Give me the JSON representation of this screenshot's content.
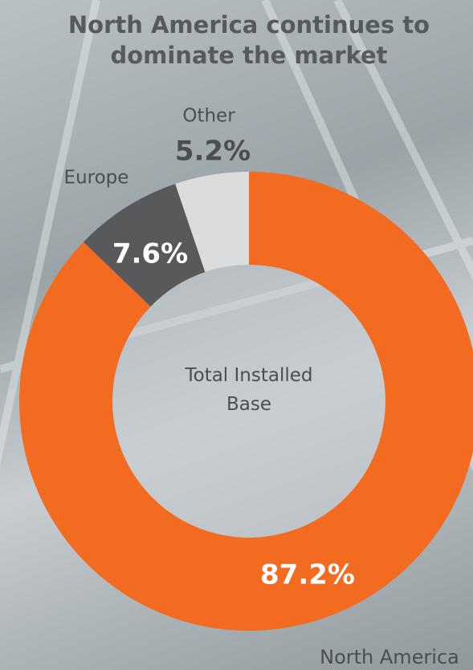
{
  "chart_data": {
    "type": "donut",
    "title": "North America continues to dominate the market",
    "center_label": "Total Installed Base",
    "categories": [
      "North America",
      "Europe",
      "Other"
    ],
    "values": [
      87.2,
      7.6,
      5.2
    ],
    "value_labels": [
      "87.2%",
      "7.6%",
      "5.2%"
    ],
    "colors": [
      "#f26b21",
      "#58595b",
      "#dcdcdc"
    ]
  }
}
